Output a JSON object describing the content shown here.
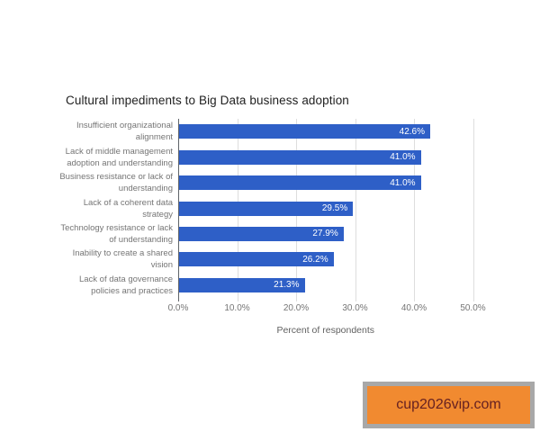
{
  "title": "Cultural impediments to Big Data business adoption",
  "chart_data": {
    "type": "bar",
    "orientation": "horizontal",
    "title": "Cultural impediments to Big Data business adoption",
    "categories": [
      [
        "Insufficient organizational",
        "alignment"
      ],
      [
        "Lack of middle management",
        "adoption and understanding"
      ],
      [
        "Business resistance or lack of",
        "understanding"
      ],
      [
        "Lack of a coherent data",
        "strategy"
      ],
      [
        "Technology resistance or lack",
        "of understanding"
      ],
      [
        "Inability to create a shared",
        "vision"
      ],
      [
        "Lack of data governance",
        "policies and practices"
      ]
    ],
    "values": [
      42.6,
      41.0,
      41.0,
      29.5,
      27.9,
      26.2,
      21.3
    ],
    "value_labels": [
      "42.6%",
      "41.0%",
      "41.0%",
      "29.5%",
      "27.9%",
      "26.2%",
      "21.3%"
    ],
    "xlabel": "Percent of respondents",
    "xlim": [
      0,
      50
    ],
    "x_ticks": {
      "values": [
        0,
        10,
        20,
        30,
        40,
        50
      ],
      "labels": [
        "0.0%",
        "10.0%",
        "20.0%",
        "30.0%",
        "40.0%",
        "50.0%"
      ]
    },
    "grid": true,
    "legend": "none",
    "colors": {
      "bar": "#2e5fc7",
      "grid": "#dedede",
      "axis_line": "#5f6368",
      "category_label": "#757575",
      "tick_label": "#757575",
      "axis_title": "#616161",
      "value_label": "#ffffff",
      "title": "#212121"
    }
  },
  "watermark": {
    "text": "cup2026vip.com",
    "background": "#f18a30",
    "border_color": "#a8a8a8",
    "text_color": "#662121"
  }
}
